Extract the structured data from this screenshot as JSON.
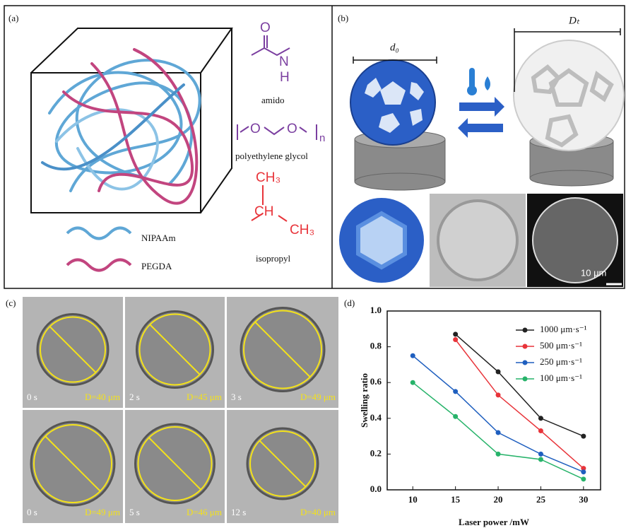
{
  "panel_a": {
    "label": "(a)",
    "amido": {
      "O": "O",
      "N": "N",
      "H": "H",
      "name": "amido"
    },
    "peg": {
      "O1": "O",
      "O2": "O",
      "n": "n",
      "name": "polyethylene glycol"
    },
    "isopropyl": {
      "ch3a": "CH₃",
      "ch": "CH",
      "ch3b": "CH₃",
      "name": "isopropyl"
    },
    "legend": [
      "NIPAAm",
      "PEGDA"
    ]
  },
  "panel_b": {
    "label": "(b)",
    "d0": "d₀",
    "dt": "Dₜ",
    "scale": "10 μm"
  },
  "panel_c": {
    "label": "(c)",
    "frames": [
      {
        "time": "0 s",
        "d": "D=40 μm"
      },
      {
        "time": "2 s",
        "d": "D=45 μm"
      },
      {
        "time": "3 s",
        "d": "D=49 μm"
      },
      {
        "time": "0 s",
        "d": "D=49 μm"
      },
      {
        "time": "5 s",
        "d": "D=46 μm"
      },
      {
        "time": "12 s",
        "d": "D=40 μm"
      }
    ]
  },
  "panel_d": {
    "label": "(d)"
  },
  "chart_data": {
    "type": "line",
    "xlabel": "Laser power /mW",
    "ylabel": "Swelling ratio",
    "x": [
      10,
      15,
      20,
      25,
      30
    ],
    "series": [
      {
        "name": "1000  μm·s⁻¹",
        "color": "#222222",
        "values": [
          null,
          0.87,
          0.66,
          0.4,
          0.3
        ]
      },
      {
        "name": "500  μm·s⁻¹",
        "color": "#e8343a",
        "values": [
          null,
          0.84,
          0.53,
          0.33,
          0.12
        ]
      },
      {
        "name": "250  μm·s⁻¹",
        "color": "#1f5fbf",
        "values": [
          0.75,
          0.55,
          0.32,
          0.2,
          0.1
        ]
      },
      {
        "name": "100  μm·s⁻¹",
        "color": "#27b36a",
        "values": [
          0.6,
          0.41,
          0.2,
          0.17,
          0.06
        ]
      }
    ],
    "xlim": [
      7,
      32
    ],
    "ylim": [
      0,
      1
    ],
    "xticks": [
      10,
      15,
      20,
      25,
      30
    ],
    "yticks": [
      {
        "value": 0,
        "label": "0.0"
      },
      {
        "value": 0.2,
        "label": "0.2"
      },
      {
        "value": 0.4,
        "label": "0.4"
      },
      {
        "value": 0.6,
        "label": "0.6"
      },
      {
        "value": 0.8,
        "label": "0.8"
      },
      {
        "value": 1,
        "label": "1.0"
      }
    ],
    "legend": "upper right"
  }
}
